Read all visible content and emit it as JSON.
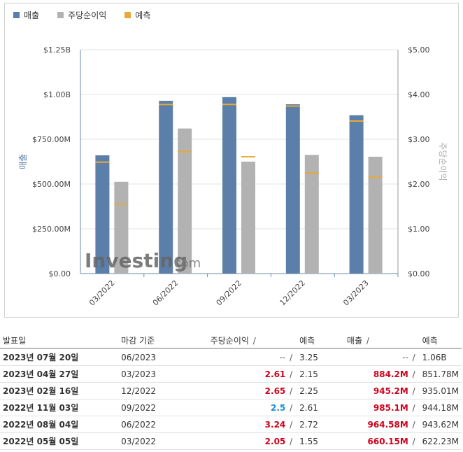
{
  "legend": {
    "revenue": "매출",
    "eps": "주당순이익",
    "forecast": "예측"
  },
  "colors": {
    "revenue": "#5b7fa8",
    "eps": "#b2b2b2",
    "forecast": "#e8a93a"
  },
  "watermark": {
    "brand": "Investing",
    "suffix": ".com"
  },
  "chart_data": {
    "type": "bar",
    "categories": [
      "03/2022",
      "06/2022",
      "09/2022",
      "12/2022",
      "03/2023"
    ],
    "series": [
      {
        "name": "매출",
        "axis": "left",
        "values": [
          660.15,
          964.58,
          985.1,
          945.2,
          884.2
        ],
        "unit": "M"
      },
      {
        "name": "주당순이익",
        "axis": "right",
        "values": [
          2.05,
          3.24,
          2.5,
          2.65,
          2.61
        ]
      }
    ],
    "forecast": {
      "name": "예측",
      "revenue": [
        622.23,
        943.62,
        944.18,
        935.01,
        851.78
      ],
      "eps": [
        1.55,
        2.72,
        2.61,
        2.25,
        2.15
      ]
    },
    "y_left": {
      "label": "매출",
      "ylim": [
        0,
        1250
      ],
      "ticks": [
        0,
        250,
        500,
        750,
        1000,
        1250
      ],
      "tick_labels": [
        "$0.00",
        "$250.00M",
        "$500.00M",
        "$750.00M",
        "$1.00B",
        "$1.25B"
      ]
    },
    "y_right": {
      "label": "주당순이익",
      "ylim": [
        0,
        5
      ],
      "ticks": [
        0,
        1,
        2,
        3,
        4,
        5
      ],
      "tick_labels": [
        "$0.00",
        "$1.00",
        "$2.00",
        "$3.00",
        "$4.00",
        "$5.00"
      ]
    },
    "grid": true,
    "legend_position": "top-left"
  },
  "table": {
    "headers": {
      "date": "발표일",
      "period": "마감 기준",
      "eps": "주당순이익",
      "eps_forecast": "예측",
      "revenue": "매출",
      "revenue_forecast": "예측"
    },
    "rows": [
      {
        "date": "2023년 07월 20일",
        "period": "06/2023",
        "eps": "--",
        "eps_color": "gray",
        "eps_forecast": "3.25",
        "revenue": "--",
        "revenue_color": "gray",
        "revenue_forecast": "1.06B"
      },
      {
        "date": "2023년 04월 27일",
        "period": "03/2023",
        "eps": "2.61",
        "eps_color": "red",
        "eps_forecast": "2.15",
        "revenue": "884.2M",
        "revenue_color": "red",
        "revenue_forecast": "851.78M"
      },
      {
        "date": "2023년 02월 16일",
        "period": "12/2022",
        "eps": "2.65",
        "eps_color": "red",
        "eps_forecast": "2.25",
        "revenue": "945.2M",
        "revenue_color": "red",
        "revenue_forecast": "935.01M"
      },
      {
        "date": "2022년 11월 03일",
        "period": "09/2022",
        "eps": "2.5",
        "eps_color": "blue",
        "eps_forecast": "2.61",
        "revenue": "985.1M",
        "revenue_color": "red",
        "revenue_forecast": "944.18M"
      },
      {
        "date": "2022년 08월 04일",
        "period": "06/2022",
        "eps": "3.24",
        "eps_color": "red",
        "eps_forecast": "2.72",
        "revenue": "964.58M",
        "revenue_color": "red",
        "revenue_forecast": "943.62M"
      },
      {
        "date": "2022년 05월 05일",
        "period": "03/2022",
        "eps": "2.05",
        "eps_color": "red",
        "eps_forecast": "1.55",
        "revenue": "660.15M",
        "revenue_color": "red",
        "revenue_forecast": "622.23M"
      }
    ]
  }
}
